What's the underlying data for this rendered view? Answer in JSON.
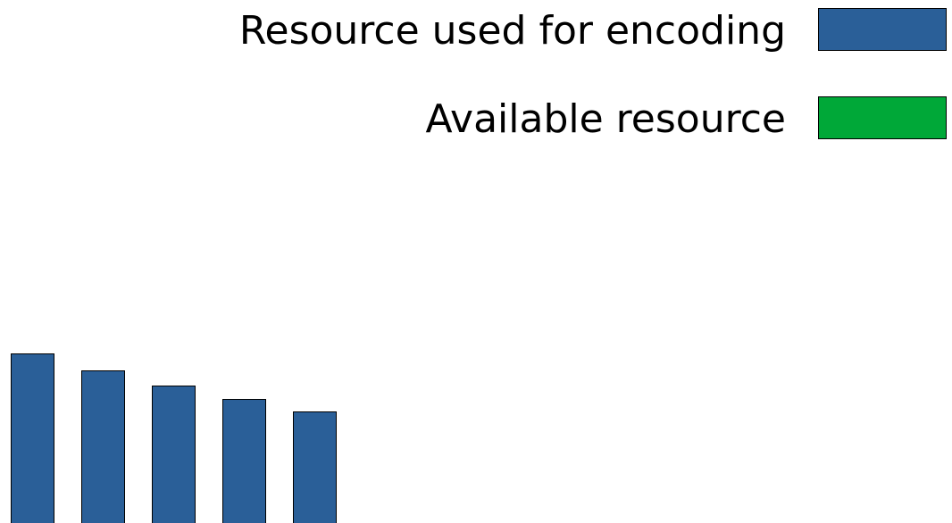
{
  "chart_data": {
    "type": "bar",
    "categories": [
      null,
      null,
      null,
      null,
      null
    ],
    "series": [
      {
        "name": "Resource used for encoding",
        "color": "#2a5f98",
        "values": [
          190,
          171,
          154,
          139,
          125
        ]
      },
      {
        "name": "Available resource",
        "color": "#00a838",
        "values": [
          null,
          null,
          null,
          null,
          null
        ]
      }
    ],
    "ylim": [
      0,
      200
    ]
  }
}
